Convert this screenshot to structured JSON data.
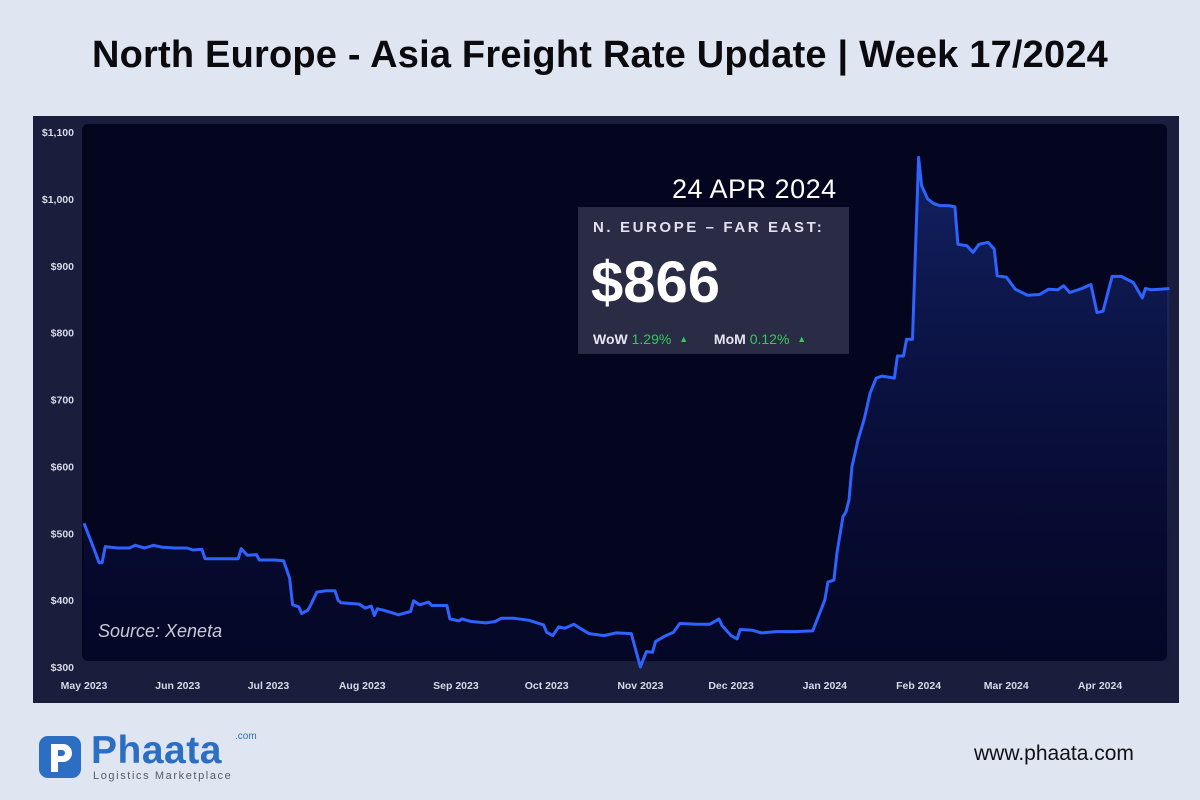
{
  "header": {
    "title": "North Europe - Asia Freight Rate Update | Week 17/2024"
  },
  "source": "Source: Xeneta",
  "callout": {
    "date": "24 APR 2024",
    "route": "N. EUROPE – FAR EAST:",
    "value": "$866",
    "wow_label": "WoW",
    "wow_value": "1.29%",
    "mom_label": "MoM",
    "mom_value": "0.12%",
    "trend_icon": "triangle-up-icon"
  },
  "branding": {
    "logo_word": "Phaata",
    "logo_domain": ".com",
    "logo_tagline": "Logistics Marketplace",
    "website": "www.phaata.com"
  },
  "colors": {
    "page_background": "#dfe6f1",
    "plot_background": "#04051f",
    "line": "#2e63ff",
    "positive_change": "#35c95a",
    "brand_blue": "#2c6ec2"
  },
  "chart_data": {
    "type": "area",
    "title": "North Europe - Asia Freight Rate Update | Week 17/2024",
    "xlabel": "",
    "ylabel": "",
    "ylim": [
      300,
      1100
    ],
    "grid": false,
    "yticks": [
      300,
      400,
      500,
      600,
      700,
      800,
      900,
      1000,
      1100
    ],
    "ytick_labels": [
      "$300",
      "$400",
      "$500",
      "$600",
      "$700",
      "$800",
      "$900",
      "$1,000",
      "$1,100"
    ],
    "xtick_labels": [
      "May 2023",
      "Jun 2023",
      "Jul 2023",
      "Aug 2023",
      "Sep 2023",
      "Oct 2023",
      "Nov 2023",
      "Dec 2023",
      "Jan 2024",
      "Feb 2024",
      "Mar 2024",
      "Apr 2024"
    ],
    "xtick_dates": [
      "2023-05-01",
      "2023-06-01",
      "2023-07-01",
      "2023-08-01",
      "2023-09-01",
      "2023-10-01",
      "2023-11-01",
      "2023-12-01",
      "2024-01-01",
      "2024-02-01",
      "2024-03-01",
      "2024-04-01"
    ],
    "series": [
      {
        "points": [
          [
            "2023-05-01",
            515
          ],
          [
            "2023-05-04",
            480
          ],
          [
            "2023-05-06",
            456
          ],
          [
            "2023-05-07",
            456
          ],
          [
            "2023-05-08",
            480
          ],
          [
            "2023-05-12",
            478
          ],
          [
            "2023-05-16",
            478
          ],
          [
            "2023-05-18",
            482
          ],
          [
            "2023-05-21",
            478
          ],
          [
            "2023-05-24",
            482
          ],
          [
            "2023-05-27",
            479
          ],
          [
            "2023-05-31",
            478
          ],
          [
            "2023-06-04",
            478
          ],
          [
            "2023-06-06",
            475
          ],
          [
            "2023-06-09",
            476
          ],
          [
            "2023-06-10",
            462
          ],
          [
            "2023-06-16",
            462
          ],
          [
            "2023-06-21",
            462
          ],
          [
            "2023-06-22",
            477
          ],
          [
            "2023-06-24",
            467
          ],
          [
            "2023-06-27",
            468
          ],
          [
            "2023-06-28",
            460
          ],
          [
            "2023-07-03",
            460
          ],
          [
            "2023-07-06",
            459
          ],
          [
            "2023-07-08",
            433
          ],
          [
            "2023-07-09",
            393
          ],
          [
            "2023-07-11",
            390
          ],
          [
            "2023-07-12",
            380
          ],
          [
            "2023-07-14",
            385
          ],
          [
            "2023-07-15",
            393
          ],
          [
            "2023-07-17",
            412
          ],
          [
            "2023-07-20",
            414
          ],
          [
            "2023-07-23",
            414
          ],
          [
            "2023-07-24",
            400
          ],
          [
            "2023-07-25",
            396
          ],
          [
            "2023-07-31",
            394
          ],
          [
            "2023-08-02",
            388
          ],
          [
            "2023-08-04",
            391
          ],
          [
            "2023-08-05",
            377
          ],
          [
            "2023-08-06",
            387
          ],
          [
            "2023-08-08",
            385
          ],
          [
            "2023-08-13",
            378
          ],
          [
            "2023-08-17",
            383
          ],
          [
            "2023-08-18",
            399
          ],
          [
            "2023-08-20",
            393
          ],
          [
            "2023-08-23",
            397
          ],
          [
            "2023-08-24",
            392
          ],
          [
            "2023-08-29",
            392
          ],
          [
            "2023-08-30",
            372
          ],
          [
            "2023-09-02",
            369
          ],
          [
            "2023-09-03",
            372
          ],
          [
            "2023-09-06",
            368
          ],
          [
            "2023-09-11",
            366
          ],
          [
            "2023-09-14",
            368
          ],
          [
            "2023-09-16",
            373
          ],
          [
            "2023-09-20",
            373
          ],
          [
            "2023-09-25",
            370
          ],
          [
            "2023-09-30",
            363
          ],
          [
            "2023-10-01",
            352
          ],
          [
            "2023-10-03",
            347
          ],
          [
            "2023-10-05",
            360
          ],
          [
            "2023-10-07",
            358
          ],
          [
            "2023-10-10",
            364
          ],
          [
            "2023-10-12",
            358
          ],
          [
            "2023-10-15",
            350
          ],
          [
            "2023-10-20",
            347
          ],
          [
            "2023-10-24",
            351
          ],
          [
            "2023-10-29",
            350
          ],
          [
            "2023-11-01",
            300
          ],
          [
            "2023-11-03",
            323
          ],
          [
            "2023-11-05",
            322
          ],
          [
            "2023-11-06",
            338
          ],
          [
            "2023-11-09",
            346
          ],
          [
            "2023-11-12",
            352
          ],
          [
            "2023-11-14",
            365
          ],
          [
            "2023-11-20",
            364
          ],
          [
            "2023-11-24",
            364
          ],
          [
            "2023-11-27",
            372
          ],
          [
            "2023-11-28",
            362
          ],
          [
            "2023-12-01",
            347
          ],
          [
            "2023-12-03",
            342
          ],
          [
            "2023-12-04",
            356
          ],
          [
            "2023-12-08",
            355
          ],
          [
            "2023-12-11",
            351
          ],
          [
            "2023-12-16",
            353
          ],
          [
            "2023-12-22",
            353
          ],
          [
            "2023-12-28",
            354
          ],
          [
            "2024-01-01",
            400
          ],
          [
            "2024-01-02",
            427
          ],
          [
            "2024-01-04",
            430
          ],
          [
            "2024-01-05",
            470
          ],
          [
            "2024-01-07",
            525
          ],
          [
            "2024-01-08",
            532
          ],
          [
            "2024-01-09",
            550
          ],
          [
            "2024-01-10",
            600
          ],
          [
            "2024-01-12",
            640
          ],
          [
            "2024-01-14",
            670
          ],
          [
            "2024-01-16",
            710
          ],
          [
            "2024-01-18",
            732
          ],
          [
            "2024-01-20",
            735
          ],
          [
            "2024-01-24",
            732
          ],
          [
            "2024-01-25",
            765
          ],
          [
            "2024-01-27",
            765
          ],
          [
            "2024-01-28",
            790
          ],
          [
            "2024-01-30",
            790
          ],
          [
            "2024-02-01",
            1062
          ],
          [
            "2024-02-02",
            1020
          ],
          [
            "2024-02-04",
            1000
          ],
          [
            "2024-02-06",
            993
          ],
          [
            "2024-02-08",
            990
          ],
          [
            "2024-02-11",
            990
          ],
          [
            "2024-02-13",
            988
          ],
          [
            "2024-02-14",
            932
          ],
          [
            "2024-02-17",
            930
          ],
          [
            "2024-02-19",
            920
          ],
          [
            "2024-02-21",
            932
          ],
          [
            "2024-02-24",
            935
          ],
          [
            "2024-02-26",
            925
          ],
          [
            "2024-02-27",
            885
          ],
          [
            "2024-03-01",
            883
          ],
          [
            "2024-03-04",
            865
          ],
          [
            "2024-03-08",
            856
          ],
          [
            "2024-03-12",
            857
          ],
          [
            "2024-03-15",
            865
          ],
          [
            "2024-03-18",
            864
          ],
          [
            "2024-03-20",
            870
          ],
          [
            "2024-03-22",
            860
          ],
          [
            "2024-03-26",
            866
          ],
          [
            "2024-03-29",
            872
          ],
          [
            "2024-03-31",
            830
          ],
          [
            "2024-04-02",
            832
          ],
          [
            "2024-04-05",
            884
          ],
          [
            "2024-04-08",
            884
          ],
          [
            "2024-04-12",
            875
          ],
          [
            "2024-04-15",
            852
          ],
          [
            "2024-04-16",
            866
          ],
          [
            "2024-04-18",
            864
          ],
          [
            "2024-04-21",
            865
          ],
          [
            "2024-04-24",
            866
          ]
        ]
      }
    ]
  }
}
